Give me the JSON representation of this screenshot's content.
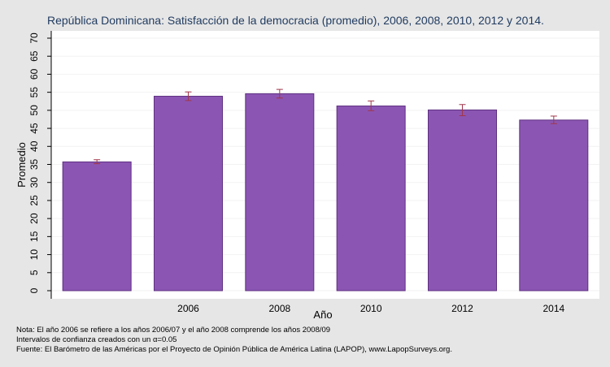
{
  "chart_data": {
    "type": "bar",
    "title": "República Dominicana: Satisfacción de la democracia (promedio), 2006, 2008, 2010, 2012 y 2014.",
    "xlabel": "Año",
    "ylabel": "Promedio",
    "ylim": [
      0,
      70
    ],
    "yticks": [
      0,
      5,
      10,
      15,
      20,
      25,
      30,
      35,
      40,
      45,
      50,
      55,
      60,
      65,
      70
    ],
    "categories": [
      "",
      "2006",
      "2008",
      "2010",
      "2012",
      "2014"
    ],
    "values": [
      35.7,
      53.9,
      54.6,
      51.2,
      50.1,
      47.3
    ],
    "ci_low": [
      35.2,
      52.7,
      53.4,
      49.9,
      48.5,
      46.3
    ],
    "ci_high": [
      36.3,
      55.1,
      55.8,
      52.6,
      51.6,
      48.4
    ],
    "grid": true,
    "colors": {
      "bar_fill": "#8b56b3",
      "bar_stroke": "#5e2f80",
      "error_bar": "#a0364a",
      "grid": "#f2f2f2",
      "plot_bg": "#ffffff",
      "page_bg": "#e6e6e6"
    }
  },
  "notes": {
    "line1": "Nota: El año 2006 se refiere a los años 2006/07 y el año 2008 comprende los años 2008/09",
    "line2": "Intervalos de confianza creados con un α=0.05",
    "line3": "Fuente: El Barómetro de las Américas por el Proyecto de Opinión Pública de América Latina (LAPOP), www.LapopSurveys.org."
  }
}
